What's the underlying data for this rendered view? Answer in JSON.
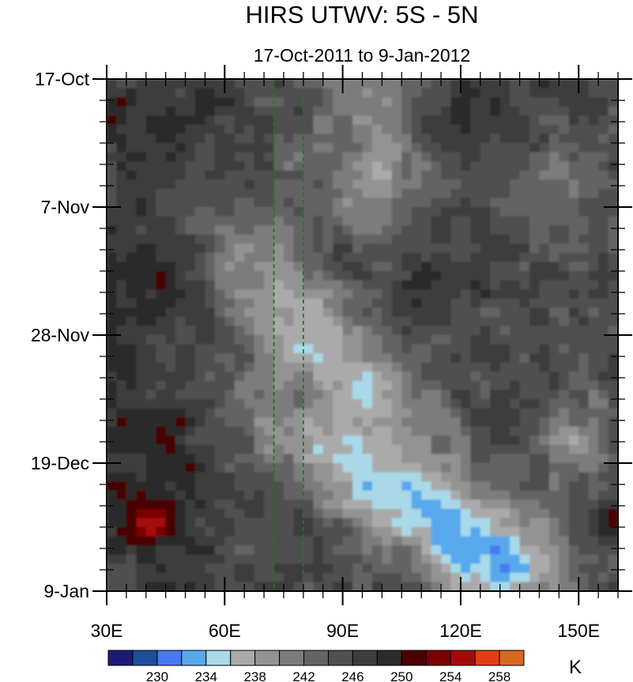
{
  "chart_data": {
    "type": "heatmap",
    "title": "HIRS UTWV: 5S - 5N",
    "subtitle": "17-Oct-2011 to 9-Jan-2012",
    "x_ticks": [
      {
        "value": 30,
        "label": "30E"
      },
      {
        "value": 60,
        "label": "60E"
      },
      {
        "value": 90,
        "label": "90E"
      },
      {
        "value": 120,
        "label": "120E"
      },
      {
        "value": 150,
        "label": "150E"
      }
    ],
    "x_range": [
      30,
      160
    ],
    "y_ticks": [
      {
        "value": 0,
        "label": "17-Oct"
      },
      {
        "value": 21,
        "label": "7-Nov"
      },
      {
        "value": 42,
        "label": "28-Nov"
      },
      {
        "value": 63,
        "label": "19-Dec"
      },
      {
        "value": 84,
        "label": "9-Jan"
      }
    ],
    "y_range_days": [
      0,
      84
    ],
    "reference_lines_lon": [
      72.5,
      80
    ],
    "reference_line_color": "#1f7a1f",
    "colorbar": {
      "unit": "K",
      "levels": [
        228,
        230,
        232,
        234,
        236,
        238,
        240,
        242,
        244,
        246,
        248,
        250,
        252,
        254,
        256,
        258
      ],
      "tick_labels": [
        "230",
        "234",
        "238",
        "242",
        "246",
        "250",
        "254",
        "258"
      ],
      "colors": [
        "#1c1c78",
        "#1d4f9c",
        "#4a78f2",
        "#58a9ec",
        "#a9d9e8",
        "#aaaaaa",
        "#939393",
        "#7b7b7b",
        "#646464",
        "#505050",
        "#3d3d3d",
        "#2c2c2c",
        "#4a0000",
        "#7a0000",
        "#a50a0a",
        "#e43d14",
        "#d96820"
      ]
    }
  }
}
